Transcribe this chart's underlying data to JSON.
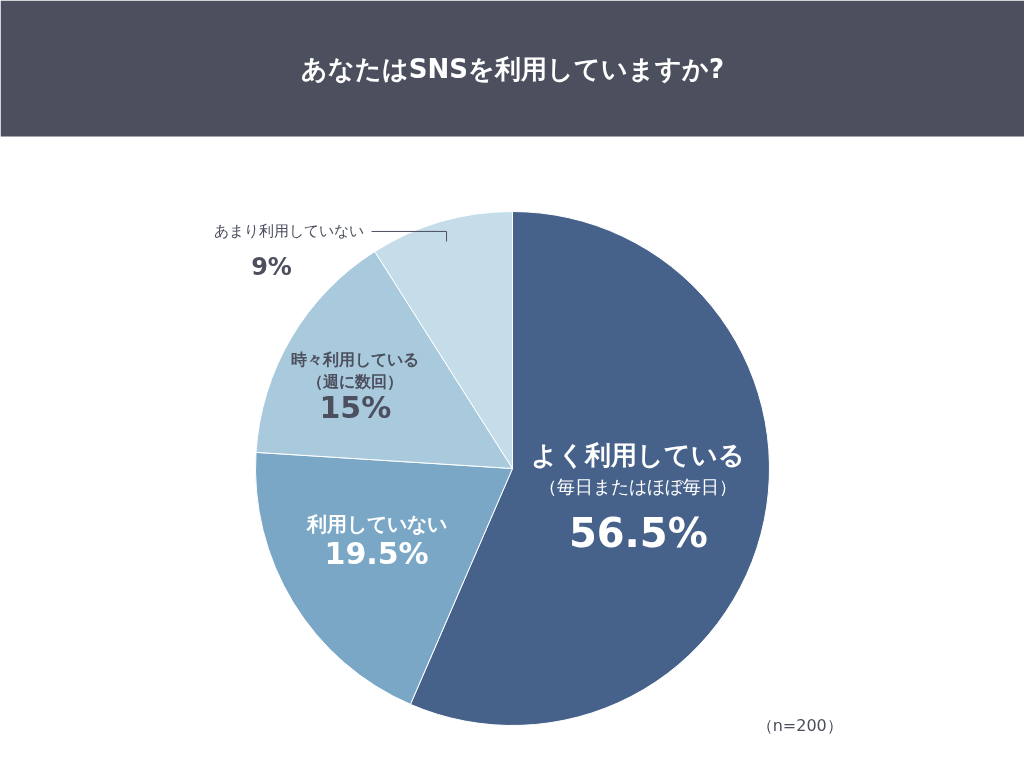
{
  "chart_data": {
    "type": "pie",
    "title": "あなたはSNSを利用していますか?",
    "categories": [
      "よく利用している（毎日またはほぼ毎日）",
      "利用していない",
      "時々利用している（週に数回）",
      "あまり利用していない"
    ],
    "values": [
      56.5,
      19.5,
      15,
      9
    ],
    "value_labels": [
      "56.5%",
      "19.5%",
      "15%",
      "9%"
    ],
    "colors": [
      "#46618a",
      "#7ba7c7",
      "#a9c9dc",
      "#c5dde9"
    ],
    "annotations": [
      "（n=200）"
    ]
  }
}
